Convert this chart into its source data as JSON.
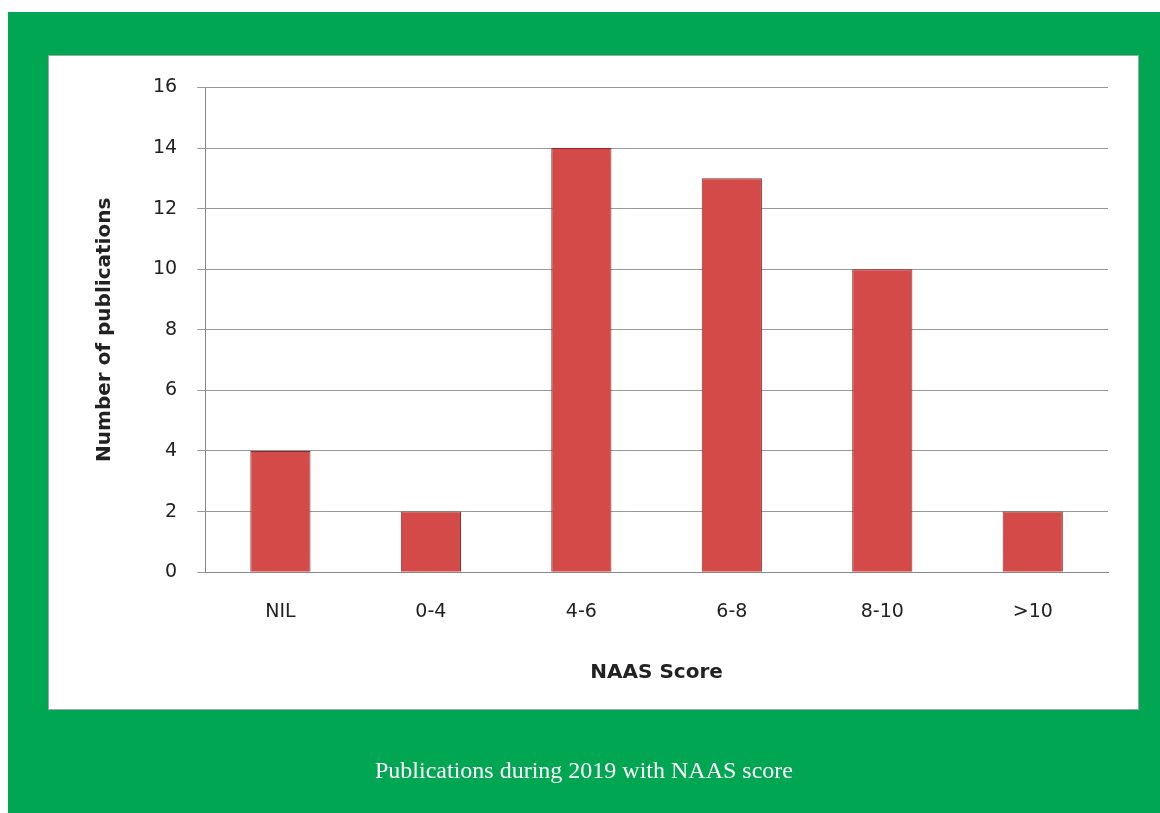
{
  "chart_data": {
    "type": "bar",
    "title": "Publications during 2019 with NAAS score",
    "xlabel": "NAAS Score",
    "ylabel": "Number of publications",
    "categories": [
      "NIL",
      "0-4",
      "4-6",
      "6-8",
      "8-10",
      ">10"
    ],
    "values": [
      4,
      2,
      14,
      13,
      10,
      2
    ],
    "color": "#d44a48",
    "ylim": [
      0,
      16
    ],
    "yticks": [
      0,
      2,
      4,
      6,
      8,
      10,
      12,
      14,
      16
    ],
    "grid": "y",
    "legend": false
  }
}
